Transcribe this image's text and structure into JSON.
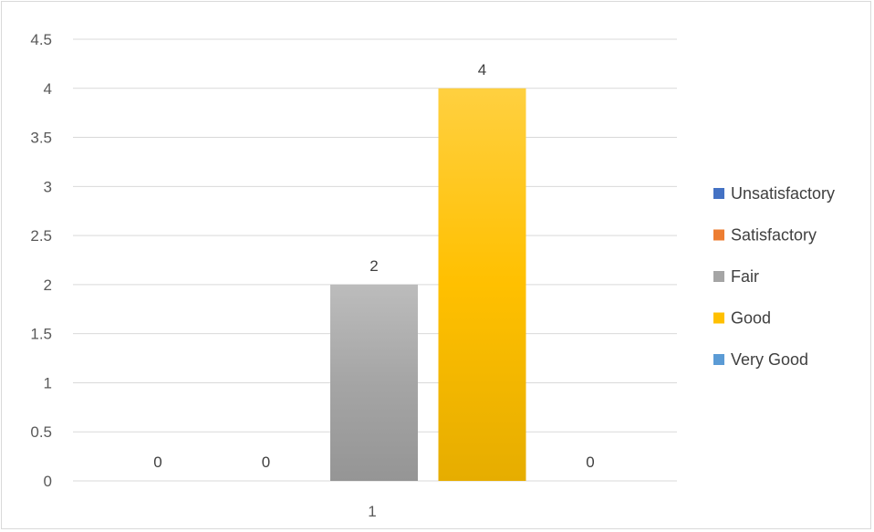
{
  "chart_data": {
    "type": "bar",
    "categories": [
      "1"
    ],
    "series": [
      {
        "name": "Unsatisfactory",
        "values": [
          0
        ],
        "color": "#4472c4"
      },
      {
        "name": "Satisfactory",
        "values": [
          0
        ],
        "color": "#ed7d31"
      },
      {
        "name": "Fair",
        "values": [
          2
        ],
        "color": "#a5a5a5"
      },
      {
        "name": "Good",
        "values": [
          4
        ],
        "color": "#ffc000"
      },
      {
        "name": "Very Good",
        "values": [
          0
        ],
        "color": "#5b9bd5"
      }
    ],
    "ylim": [
      0,
      4.5
    ],
    "y_ticks": [
      "0",
      "0.5",
      "1",
      "1.5",
      "2",
      "2.5",
      "3",
      "3.5",
      "4",
      "4.5"
    ],
    "data_labels": [
      "0",
      "0",
      "2",
      "4",
      "0"
    ],
    "grid": true,
    "legend_position": "right"
  }
}
